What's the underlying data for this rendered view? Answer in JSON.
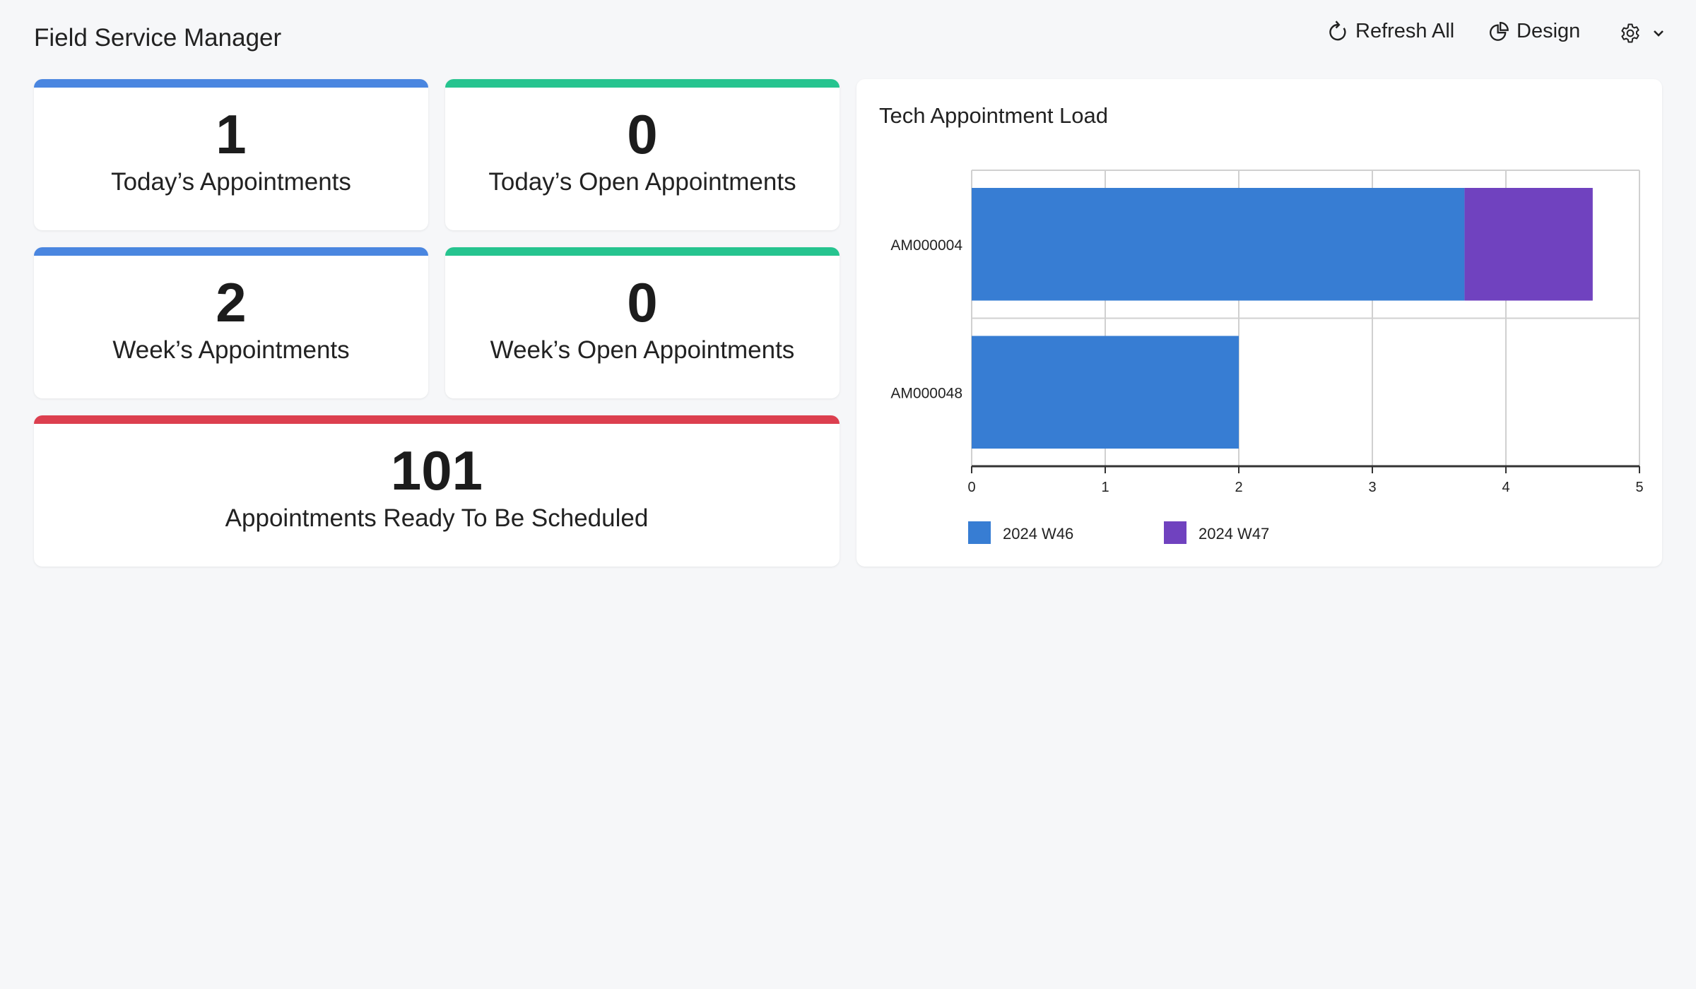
{
  "header": {
    "title": "Field Service Manager",
    "refresh_label": "Refresh All",
    "design_label": "Design",
    "icons": [
      "refresh-icon",
      "pie-chart-icon",
      "gear-icon",
      "chevron-down-icon"
    ]
  },
  "cards": [
    {
      "value": "1",
      "label": "Today’s Appointments",
      "color": "#4a86e0"
    },
    {
      "value": "0",
      "label": "Today’s Open Appointments",
      "color": "#26c48f"
    },
    {
      "value": "2",
      "label": "Week’s Appointments",
      "color": "#4a86e0"
    },
    {
      "value": "0",
      "label": "Week’s Open Appointments",
      "color": "#26c48f"
    },
    {
      "value": "101",
      "label": "Appointments Ready To Be Scheduled",
      "color": "#dc3f4f"
    }
  ],
  "chart_title": "Tech Appointment Load",
  "chart_data": {
    "type": "bar",
    "orientation": "horizontal",
    "stacked": true,
    "categories": [
      "AM000004",
      "AM000048"
    ],
    "series": [
      {
        "name": "2024 W46",
        "values": [
          3.69,
          2
        ],
        "color": "#377dd3"
      },
      {
        "name": "2024 W47",
        "values": [
          0.96,
          0
        ],
        "color": "#7042bf"
      }
    ],
    "xlim": [
      0,
      5
    ],
    "xticks": [
      "0",
      "1",
      "2",
      "3",
      "4",
      "5"
    ],
    "grid": true,
    "legend": "bottom-left"
  }
}
